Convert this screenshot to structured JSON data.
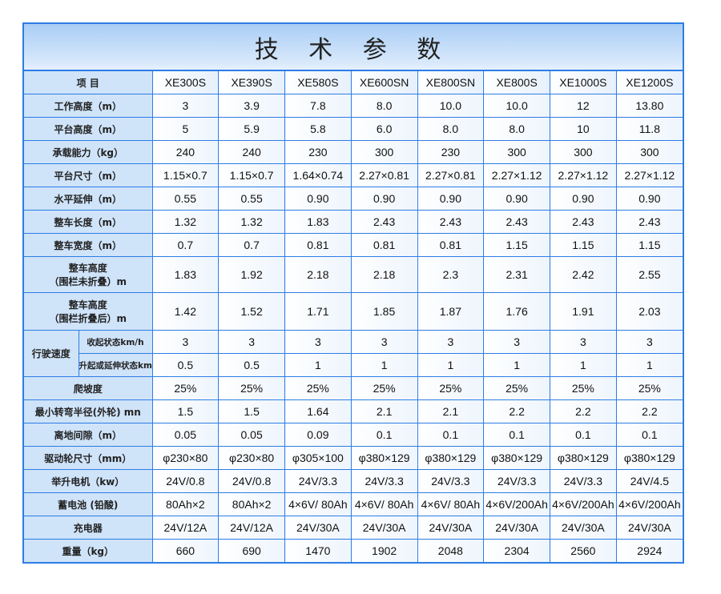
{
  "title": "技 术 参 数",
  "header": {
    "label": "项  目",
    "models": [
      "XE300S",
      "XE390S",
      "XE580S",
      "XE600SN",
      "XE800SN",
      "XE800S",
      "XE1000S",
      "XE1200S"
    ]
  },
  "rows": [
    {
      "label": "工作高度（m）",
      "values": [
        "3",
        "3.9",
        "7.8",
        "8.0",
        "10.0",
        "10.0",
        "12",
        "13.80"
      ]
    },
    {
      "label": "平台高度（m）",
      "values": [
        "5",
        "5.9",
        "5.8",
        "6.0",
        "8.0",
        "8.0",
        "10",
        "11.8"
      ]
    },
    {
      "label": "承载能力（kg）",
      "values": [
        "240",
        "240",
        "230",
        "300",
        "230",
        "300",
        "300",
        "300"
      ]
    },
    {
      "label": "平台尺寸（m）",
      "values": [
        "1.15×0.7",
        "1.15×0.7",
        "1.64×0.74",
        "2.27×0.81",
        "2.27×0.81",
        "2.27×1.12",
        "2.27×1.12",
        "2.27×1.12"
      ]
    },
    {
      "label": "水平延伸（m）",
      "values": [
        "0.55",
        "0.55",
        "0.90",
        "0.90",
        "0.90",
        "0.90",
        "0.90",
        "0.90"
      ]
    },
    {
      "label": "整车长度（m）",
      "values": [
        "1.32",
        "1.32",
        "1.83",
        "2.43",
        "2.43",
        "2.43",
        "2.43",
        "2.43"
      ]
    },
    {
      "label": "整车宽度（m）",
      "values": [
        "0.7",
        "0.7",
        "0.81",
        "0.81",
        "0.81",
        "1.15",
        "1.15",
        "1.15"
      ]
    }
  ],
  "tall_rows": [
    {
      "label1": "整车高度",
      "label2": "（围栏未折叠）m",
      "values": [
        "1.83",
        "1.92",
        "2.18",
        "2.18",
        "2.3",
        "2.31",
        "2.42",
        "2.55"
      ]
    },
    {
      "label1": "整车高度",
      "label2": "（围栏折叠后）m",
      "values": [
        "1.42",
        "1.52",
        "1.71",
        "1.85",
        "1.87",
        "1.76",
        "1.91",
        "2.03"
      ]
    }
  ],
  "speed": {
    "label": "行驶速度",
    "sub": [
      {
        "label": "收起状态km/h",
        "values": [
          "3",
          "3",
          "3",
          "3",
          "3",
          "3",
          "3",
          "3"
        ]
      },
      {
        "label": "升起或延伸状态km/h",
        "values": [
          "0.5",
          "0.5",
          "1",
          "1",
          "1",
          "1",
          "1",
          "1"
        ]
      }
    ]
  },
  "rows2": [
    {
      "label": "爬坡度",
      "values": [
        "25%",
        "25%",
        "25%",
        "25%",
        "25%",
        "25%",
        "25%",
        "25%"
      ]
    },
    {
      "label": "最小转弯半径(外轮) mn",
      "values": [
        "1.5",
        "1.5",
        "1.64",
        "2.1",
        "2.1",
        "2.2",
        "2.2",
        "2.2"
      ]
    },
    {
      "label": "离地间隙（m）",
      "values": [
        "0.05",
        "0.05",
        "0.09",
        "0.1",
        "0.1",
        "0.1",
        "0.1",
        "0.1"
      ]
    },
    {
      "label": "驱动轮尺寸（mm）",
      "values": [
        "φ230×80",
        "φ230×80",
        "φ305×100",
        "φ380×129",
        "φ380×129",
        "φ380×129",
        "φ380×129",
        "φ380×129"
      ]
    },
    {
      "label": "举升电机（kw）",
      "values": [
        "24V/0.8",
        "24V/0.8",
        "24V/3.3",
        "24V/3.3",
        "24V/3.3",
        "24V/3.3",
        "24V/3.3",
        "24V/4.5"
      ]
    },
    {
      "label": "蓄电池 (铅酸)",
      "values": [
        "80Ah×2",
        "80Ah×2",
        "4×6V/ 80Ah",
        "4×6V/ 80Ah",
        "4×6V/ 80Ah",
        "4×6V/200Ah",
        "4×6V/200Ah",
        "4×6V/200Ah"
      ]
    },
    {
      "label": "充电器",
      "values": [
        "24V/12A",
        "24V/12A",
        "24V/30A",
        "24V/30A",
        "24V/30A",
        "24V/30A",
        "24V/30A",
        "24V/30A"
      ]
    },
    {
      "label": "重量（kg）",
      "values": [
        "660",
        "690",
        "1470",
        "1902",
        "2048",
        "2304",
        "2560",
        "2924"
      ]
    }
  ],
  "colors": {
    "border": "#2d7de6",
    "label_bg": "#cfe3f9",
    "title_bg": "#a9cdf5"
  }
}
